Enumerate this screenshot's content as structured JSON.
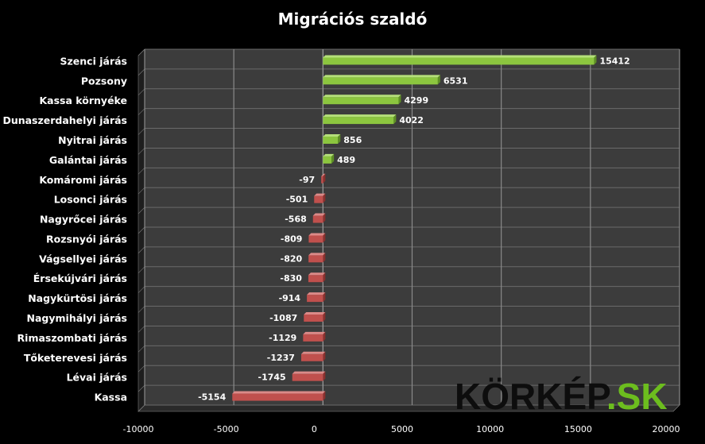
{
  "chart_data": {
    "type": "bar",
    "orientation": "horizontal",
    "title": "Migrációs szaldó",
    "categories": [
      "Szenci járás",
      "Pozsony",
      "Kassa környéke",
      "Dunaszerdahelyi járás",
      "Nyitrai járás",
      "Galántai járás",
      "Komáromi járás",
      "Losonci járás",
      "Nagyrőcei járás",
      "Rozsnyói járás",
      "Vágsellyei járás",
      "Érsekújvári járás",
      "Nagykürtösi járás",
      "Nagymihályi járás",
      "Rimaszombati járás",
      "Tőketerevesi járás",
      "Lévai járás",
      "Kassa"
    ],
    "values": [
      15412,
      6531,
      4299,
      4022,
      856,
      489,
      -97,
      -501,
      -568,
      -809,
      -820,
      -830,
      -914,
      -1087,
      -1129,
      -1237,
      -1745,
      -5154
    ],
    "xlim": [
      -10000,
      20000
    ],
    "xticks": [
      "-10000",
      "-5000",
      "0",
      "5000",
      "10000",
      "15000",
      "20000"
    ],
    "xtick_values": [
      -10000,
      -5000,
      0,
      5000,
      10000,
      15000,
      20000
    ],
    "grid": true,
    "colors": {
      "positive": "#8cc63f",
      "negative": "#c0504d",
      "plot_bg": "#3c3c3c",
      "grid": "#8a8a8a"
    }
  },
  "watermark": "KÖRKÉP.SK"
}
